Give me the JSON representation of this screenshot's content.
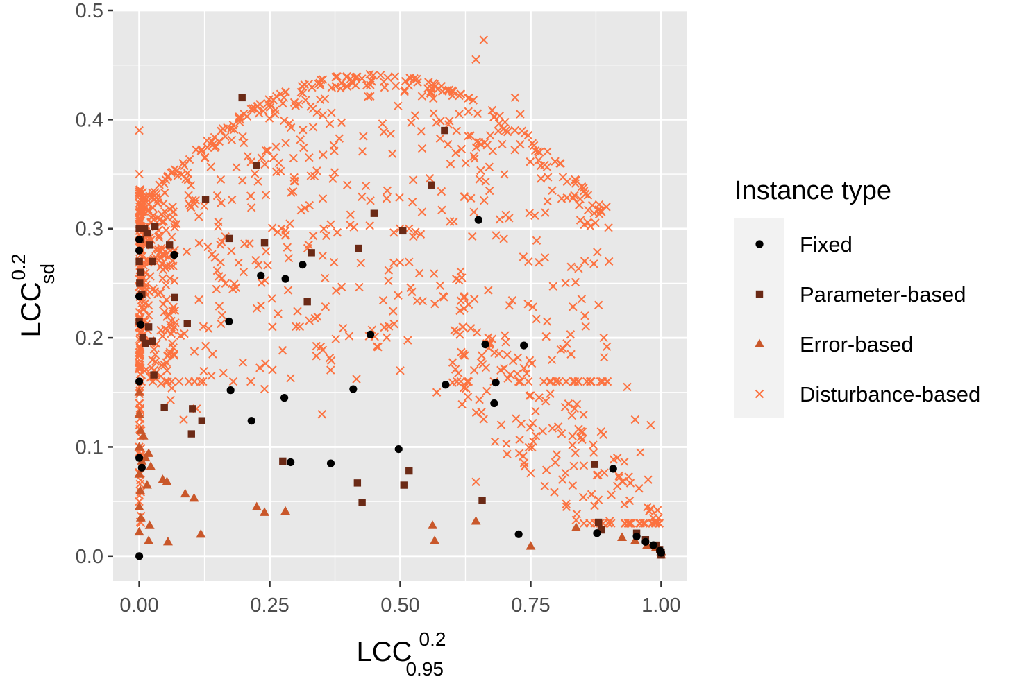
{
  "colors": {
    "panel": "#e8e8e8",
    "grid": "#ffffff",
    "fixed": "#000000",
    "parameter": "#6b2a16",
    "error": "#c9572a",
    "disturbance": "#fc7240"
  },
  "chart_data": {
    "type": "scatter",
    "xlabel": {
      "main": "LCC",
      "sup": "0.2",
      "sub": "0.95"
    },
    "ylabel": {
      "main": "LCC",
      "sup": "0.2",
      "sub": "sd"
    },
    "xlim": [
      -0.05,
      1.05
    ],
    "ylim": [
      -0.023,
      0.5
    ],
    "xticks": [
      0,
      0.25,
      0.5,
      0.75,
      1
    ],
    "xtick_labels": [
      "0.00",
      "0.25",
      "0.50",
      "0.75",
      "1.00"
    ],
    "yticks": [
      0,
      0.1,
      0.2,
      0.3,
      0.4,
      0.5
    ],
    "ytick_labels": [
      "0.0",
      "0.1",
      "0.2",
      "0.3",
      "0.4",
      "0.5"
    ],
    "grid": true,
    "legend": {
      "title": "Instance type",
      "position": "right"
    },
    "series": [
      {
        "name": "Fixed",
        "shape": "circle",
        "color": "#000000",
        "points": [
          [
            0,
            0.29
          ],
          [
            0,
            0.28
          ],
          [
            0,
            0.238
          ],
          [
            0.003,
            0.212
          ],
          [
            0,
            0.16
          ],
          [
            0,
            0.09
          ],
          [
            0.005,
            0.081
          ],
          [
            0,
            0
          ],
          [
            0.067,
            0.276
          ],
          [
            0.172,
            0.215
          ],
          [
            0.175,
            0.152
          ],
          [
            0.215,
            0.124
          ],
          [
            0.233,
            0.257
          ],
          [
            0.278,
            0.145
          ],
          [
            0.28,
            0.254
          ],
          [
            0.29,
            0.086
          ],
          [
            0.313,
            0.267
          ],
          [
            0.367,
            0.085
          ],
          [
            0.41,
            0.153
          ],
          [
            0.443,
            0.203
          ],
          [
            0.497,
            0.098
          ],
          [
            0.587,
            0.157
          ],
          [
            0.65,
            0.308
          ],
          [
            0.663,
            0.194
          ],
          [
            0.68,
            0.14
          ],
          [
            0.683,
            0.159
          ],
          [
            0.727,
            0.02
          ],
          [
            0.737,
            0.193
          ],
          [
            0.877,
            0.021
          ],
          [
            0.908,
            0.08
          ],
          [
            0.953,
            0.018
          ],
          [
            0.97,
            0.013
          ],
          [
            0.985,
            0.01
          ],
          [
            0.998,
            0.005
          ],
          [
            1,
            0.003
          ]
        ]
      },
      {
        "name": "Parameter-based",
        "shape": "square",
        "color": "#6b2a16",
        "points": [
          [
            0,
            0.3
          ],
          [
            0.002,
            0.29
          ],
          [
            0,
            0.27
          ],
          [
            0.003,
            0.26
          ],
          [
            0.001,
            0.25
          ],
          [
            0.005,
            0.24
          ],
          [
            0,
            0.215
          ],
          [
            0.01,
            0.3
          ],
          [
            0.015,
            0.296
          ],
          [
            0.02,
            0.285
          ],
          [
            0.025,
            0.27
          ],
          [
            0.03,
            0.302
          ],
          [
            0.007,
            0.2
          ],
          [
            0.012,
            0.195
          ],
          [
            0.018,
            0.21
          ],
          [
            0.025,
            0.197
          ],
          [
            0.028,
            0.166
          ],
          [
            0.048,
            0.136
          ],
          [
            0.058,
            0.285
          ],
          [
            0.068,
            0.237
          ],
          [
            0.092,
            0.213
          ],
          [
            0.1,
            0.112
          ],
          [
            0.102,
            0.135
          ],
          [
            0.12,
            0.124
          ],
          [
            0.127,
            0.327
          ],
          [
            0.172,
            0.291
          ],
          [
            0.197,
            0.42
          ],
          [
            0.225,
            0.358
          ],
          [
            0.24,
            0.287
          ],
          [
            0.275,
            0.087
          ],
          [
            0.322,
            0.233
          ],
          [
            0.33,
            0.278
          ],
          [
            0.418,
            0.067
          ],
          [
            0.42,
            0.282
          ],
          [
            0.427,
            0.049
          ],
          [
            0.45,
            0.314
          ],
          [
            0.505,
            0.298
          ],
          [
            0.507,
            0.065
          ],
          [
            0.517,
            0.078
          ],
          [
            0.56,
            0.34
          ],
          [
            0.585,
            0.39
          ],
          [
            0.657,
            0.051
          ],
          [
            0.872,
            0.084
          ],
          [
            0.88,
            0.031
          ],
          [
            0.885,
            0.024
          ],
          [
            0.953,
            0.021
          ],
          [
            0.97,
            0.015
          ],
          [
            0.99,
            0.01
          ],
          [
            0.997,
            0.006
          ],
          [
            1,
            0.003
          ],
          [
            1,
            0.001
          ]
        ]
      },
      {
        "name": "Error-based",
        "shape": "triangle",
        "color": "#c9572a",
        "points": [
          [
            0,
            0.15
          ],
          [
            0,
            0.13
          ],
          [
            0.003,
            0.115
          ],
          [
            0,
            0.1
          ],
          [
            0.005,
            0.087
          ],
          [
            0,
            0.075
          ],
          [
            0.002,
            0.06
          ],
          [
            0,
            0.045
          ],
          [
            0.003,
            0.035
          ],
          [
            0,
            0.022
          ],
          [
            0.008,
            0.11
          ],
          [
            0.012,
            0.09
          ],
          [
            0.018,
            0.094
          ],
          [
            0.022,
            0.082
          ],
          [
            0.015,
            0.065
          ],
          [
            0.02,
            0.028
          ],
          [
            0.018,
            0.014
          ],
          [
            0.045,
            0.07
          ],
          [
            0.053,
            0.068
          ],
          [
            0.055,
            0.013
          ],
          [
            0.088,
            0.057
          ],
          [
            0.105,
            0.053
          ],
          [
            0.118,
            0.02
          ],
          [
            0.225,
            0.045
          ],
          [
            0.24,
            0.04
          ],
          [
            0.28,
            0.041
          ],
          [
            0.562,
            0.028
          ],
          [
            0.566,
            0.014
          ],
          [
            0.645,
            0.032
          ],
          [
            0.75,
            0.009
          ],
          [
            0.837,
            0.026
          ],
          [
            0.925,
            0.017
          ],
          [
            0.95,
            0.014
          ],
          [
            0.973,
            0.01
          ],
          [
            0.99,
            0.008
          ],
          [
            1,
            0.004
          ],
          [
            1,
            0.001
          ]
        ]
      },
      {
        "name": "Disturbance-based",
        "shape": "cross",
        "color": "#fc7240",
        "generated": true,
        "points": [
          [
            0,
            0.39
          ],
          [
            0,
            0.35
          ],
          [
            0,
            0.33
          ],
          [
            0,
            0.31
          ],
          [
            0.005,
            0.32
          ],
          [
            0,
            0.18
          ],
          [
            0,
            0.14
          ],
          [
            0,
            0.12
          ],
          [
            0,
            0.1
          ],
          [
            0,
            0.05
          ],
          [
            0.645,
            0.455
          ],
          [
            0.66,
            0.473
          ],
          [
            0.72,
            0.42
          ],
          [
            0.73,
            0.405
          ],
          [
            0.835,
            0.345
          ],
          [
            0.86,
            0.317
          ],
          [
            0.9,
            0.27
          ],
          [
            0.88,
            0.23
          ],
          [
            0.89,
            0.2
          ],
          [
            0.935,
            0.155
          ],
          [
            0.95,
            0.125
          ],
          [
            0.96,
            0.095
          ],
          [
            0.975,
            0.07
          ],
          [
            0.993,
            0.042
          ],
          [
            0.995,
            0.035
          ],
          [
            0.98,
            0.12
          ],
          [
            0.75,
            0.076
          ],
          [
            0.76,
            0.11
          ],
          [
            0.83,
            0.11
          ],
          [
            0.8,
            0.093
          ],
          [
            0.645,
            0.068
          ],
          [
            0.57,
            0.15
          ],
          [
            0.5,
            0.17
          ],
          [
            0.35,
            0.13
          ],
          [
            0.24,
            0.153
          ],
          [
            0.29,
            0.163
          ],
          [
            0.11,
            0.135
          ],
          [
            0.085,
            0.125
          ],
          [
            0.06,
            0.143
          ]
        ]
      }
    ]
  }
}
